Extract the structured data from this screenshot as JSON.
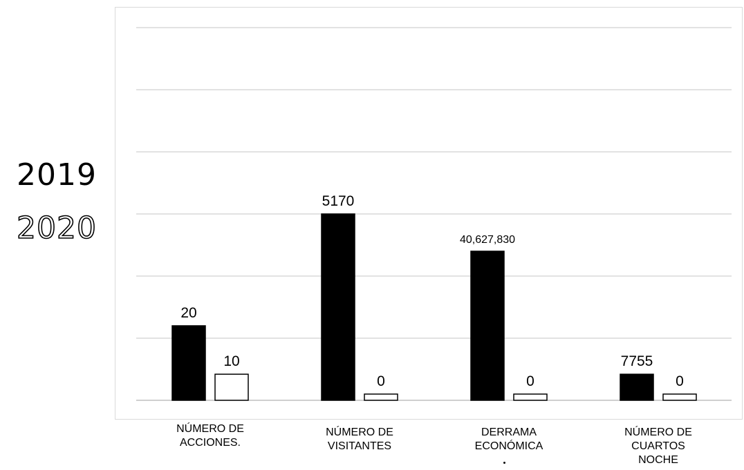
{
  "chart_data": {
    "type": "bar",
    "categories": [
      "NÚMERO DE ACCIONES.",
      "NÚMERO DE VISITANTES",
      "DERRAMA ECONÓMICA",
      "NÚMERO DE CUARTOS NOCHE"
    ],
    "category_lines": [
      [
        "NÚMERO DE",
        "ACCIONES."
      ],
      [
        "NÚMERO DE",
        "VISITANTES"
      ],
      [
        "DERRAMA",
        "ECONÓMICA"
      ],
      [
        "NÚMERO DE",
        "CUARTOS",
        "NOCHE"
      ]
    ],
    "series": [
      {
        "name": "2019",
        "color": "#000000",
        "values": [
          20,
          5170,
          40627830,
          7755
        ],
        "labels": [
          "20",
          "5170",
          "40,627,830",
          "7755"
        ],
        "display_level": [
          0.2,
          0.5,
          0.4,
          0.07
        ]
      },
      {
        "name": "2020",
        "color": "#ffffff",
        "values": [
          10,
          0,
          0,
          0
        ],
        "labels": [
          "10",
          "0",
          "0",
          "0"
        ],
        "display_level": [
          0.07,
          0.01,
          0.01,
          0.01
        ]
      }
    ],
    "gridlines": 6,
    "grid": true,
    "legend": "left",
    "title": "",
    "xlabel": "",
    "ylabel": ""
  }
}
